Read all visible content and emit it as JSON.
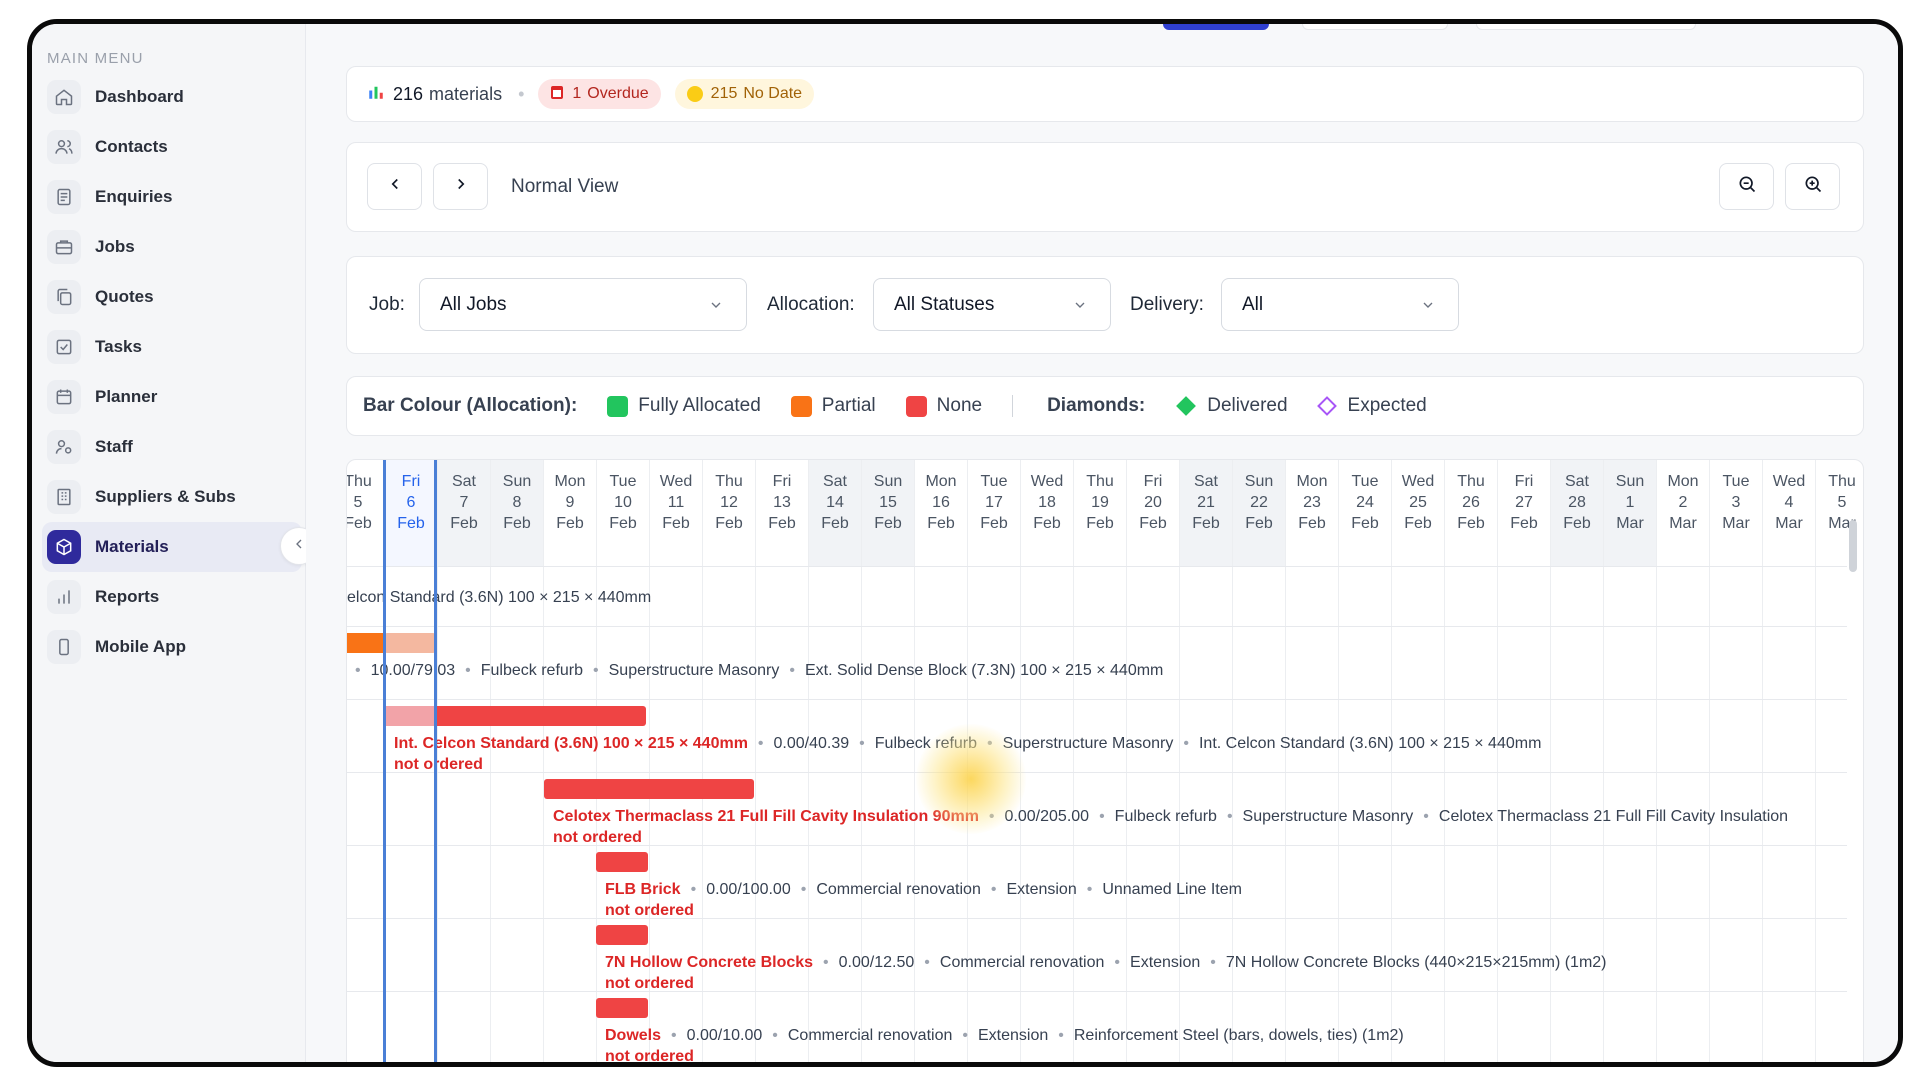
{
  "sidebar": {
    "menu_title": "MAIN MENU",
    "items": [
      {
        "label": "Dashboard",
        "icon": "home-icon"
      },
      {
        "label": "Contacts",
        "icon": "users-icon"
      },
      {
        "label": "Enquiries",
        "icon": "document-icon"
      },
      {
        "label": "Jobs",
        "icon": "briefcase-icon"
      },
      {
        "label": "Quotes",
        "icon": "copy-icon"
      },
      {
        "label": "Tasks",
        "icon": "checkbox-icon"
      },
      {
        "label": "Planner",
        "icon": "calendar-icon"
      },
      {
        "label": "Staff",
        "icon": "staff-icon"
      },
      {
        "label": "Suppliers & Subs",
        "icon": "building-icon"
      },
      {
        "label": "Materials",
        "icon": "cube-icon",
        "active": true
      },
      {
        "label": "Reports",
        "icon": "bar-chart-icon"
      },
      {
        "label": "Mobile App",
        "icon": "phone-icon"
      }
    ]
  },
  "stats": {
    "count": "216",
    "count_label": "materials",
    "overdue_count": "1",
    "overdue_label": "Overdue",
    "nodate_count": "215",
    "nodate_label": "No Date"
  },
  "view": {
    "label": "Normal View"
  },
  "filters": {
    "job_label": "Job:",
    "job_value": "All Jobs",
    "allocation_label": "Allocation:",
    "allocation_value": "All Statuses",
    "delivery_label": "Delivery:",
    "delivery_value": "All"
  },
  "legend": {
    "bar_colour_label": "Bar Colour (Allocation):",
    "fully": "Fully Allocated",
    "partial": "Partial",
    "none": "None",
    "diamonds_label": "Diamonds:",
    "delivered": "Delivered",
    "expected": "Expected",
    "colors": {
      "fully": "#22c55e",
      "partial": "#f97316",
      "none": "#ef4444"
    }
  },
  "days": [
    {
      "d": "Thu",
      "n": "5",
      "m": "Feb"
    },
    {
      "d": "Fri",
      "n": "6",
      "m": "Feb",
      "today": true
    },
    {
      "d": "Sat",
      "n": "7",
      "m": "Feb",
      "weekend": true
    },
    {
      "d": "Sun",
      "n": "8",
      "m": "Feb",
      "weekend": true
    },
    {
      "d": "Mon",
      "n": "9",
      "m": "Feb"
    },
    {
      "d": "Tue",
      "n": "10",
      "m": "Feb"
    },
    {
      "d": "Wed",
      "n": "11",
      "m": "Feb"
    },
    {
      "d": "Thu",
      "n": "12",
      "m": "Feb"
    },
    {
      "d": "Fri",
      "n": "13",
      "m": "Feb"
    },
    {
      "d": "Sat",
      "n": "14",
      "m": "Feb",
      "weekend": true
    },
    {
      "d": "Sun",
      "n": "15",
      "m": "Feb",
      "weekend": true
    },
    {
      "d": "Mon",
      "n": "16",
      "m": "Feb"
    },
    {
      "d": "Tue",
      "n": "17",
      "m": "Feb"
    },
    {
      "d": "Wed",
      "n": "18",
      "m": "Feb"
    },
    {
      "d": "Thu",
      "n": "19",
      "m": "Feb"
    },
    {
      "d": "Fri",
      "n": "20",
      "m": "Feb"
    },
    {
      "d": "Sat",
      "n": "21",
      "m": "Feb",
      "weekend": true
    },
    {
      "d": "Sun",
      "n": "22",
      "m": "Feb",
      "weekend": true
    },
    {
      "d": "Mon",
      "n": "23",
      "m": "Feb"
    },
    {
      "d": "Tue",
      "n": "24",
      "m": "Feb"
    },
    {
      "d": "Wed",
      "n": "25",
      "m": "Feb"
    },
    {
      "d": "Thu",
      "n": "26",
      "m": "Feb"
    },
    {
      "d": "Fri",
      "n": "27",
      "m": "Feb"
    },
    {
      "d": "Sat",
      "n": "28",
      "m": "Feb",
      "weekend": true
    },
    {
      "d": "Sun",
      "n": "1",
      "m": "Mar",
      "weekend": true
    },
    {
      "d": "Mon",
      "n": "2",
      "m": "Mar"
    },
    {
      "d": "Tue",
      "n": "3",
      "m": "Mar"
    },
    {
      "d": "Wed",
      "n": "4",
      "m": "Mar"
    },
    {
      "d": "Thu",
      "n": "5",
      "m": "Mar"
    }
  ],
  "rows": [
    {
      "title": "elcon Standard (3.6N) 100 × 215 × 440mm",
      "bold": false
    },
    {
      "qty": "10.00/79.03",
      "job": "Fulbeck refurb",
      "section": "Superstructure Masonry",
      "item": "Ext. Solid Dense Block (7.3N) 100 × 215 × 440mm"
    },
    {
      "title": "Int. Celcon Standard (3.6N) 100 × 215 × 440mm",
      "qty": "0.00/40.39",
      "job": "Fulbeck refurb",
      "section": "Superstructure Masonry",
      "item": "Int. Celcon Standard (3.6N) 100 × 215 × 440mm",
      "status": "not ordered"
    },
    {
      "title": "Celotex Thermaclass 21 Full Fill Cavity Insulation 90mm",
      "qty": "0.00/205.00",
      "job": "Fulbeck refurb",
      "section": "Superstructure Masonry",
      "item": "Celotex Thermaclass 21 Full Fill Cavity Insulation",
      "status": "not ordered"
    },
    {
      "title": "FLB Brick",
      "qty": "0.00/100.00",
      "job": "Commercial renovation",
      "section": "Extension",
      "item": "Unnamed Line Item",
      "status": "not ordered"
    },
    {
      "title": "7N Hollow Concrete Blocks",
      "qty": "0.00/12.50",
      "job": "Commercial renovation",
      "section": "Extension",
      "item": "7N Hollow Concrete Blocks (440×215×215mm) (1m2)",
      "status": "not ordered"
    },
    {
      "title": "Dowels",
      "qty": "0.00/10.00",
      "job": "Commercial renovation",
      "section": "Extension",
      "item": "Reinforcement Steel (bars, dowels, ties) (1m2)",
      "status": "not ordered"
    }
  ]
}
